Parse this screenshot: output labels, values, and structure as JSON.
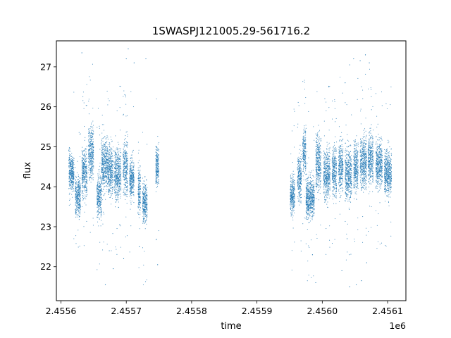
{
  "chart_data": {
    "type": "scatter",
    "title": "1SWASPJ121005.29-561716.2",
    "xlabel": "time",
    "ylabel": "flux",
    "x_offset_label": "1e6",
    "xlim": [
      2455593.0,
      2456128.0
    ],
    "ylim": [
      21.15,
      27.65
    ],
    "x_ticks": [
      2455600,
      2455700,
      2455800,
      2455900,
      2456000,
      2456100
    ],
    "x_tick_labels": [
      "2.4556",
      "2.4557",
      "2.4558",
      "2.4559",
      "2.4560",
      "2.4561"
    ],
    "y_ticks": [
      22,
      23,
      24,
      25,
      26,
      27
    ],
    "y_tick_labels": [
      "22",
      "23",
      "24",
      "25",
      "26",
      "27"
    ],
    "grid": false,
    "point_color": "#1f77b4",
    "segments": [
      {
        "t_start": 2455612,
        "t_end": 2455614,
        "center": 24.45,
        "spread": 0.35
      },
      {
        "t_start": 2455614,
        "t_end": 2455620,
        "center": 24.35,
        "spread": 0.3
      },
      {
        "t_start": 2455622,
        "t_end": 2455630,
        "center": 23.75,
        "spread": 0.35
      },
      {
        "t_start": 2455632,
        "t_end": 2455640,
        "center": 24.35,
        "spread": 0.45
      },
      {
        "t_start": 2455642,
        "t_end": 2455650,
        "center": 24.85,
        "spread": 0.45
      },
      {
        "t_start": 2455655,
        "t_end": 2455662,
        "center": 23.75,
        "spread": 0.4
      },
      {
        "t_start": 2455662,
        "t_end": 2455672,
        "center": 24.55,
        "spread": 0.45
      },
      {
        "t_start": 2455672,
        "t_end": 2455680,
        "center": 24.4,
        "spread": 0.45
      },
      {
        "t_start": 2455682,
        "t_end": 2455692,
        "center": 24.3,
        "spread": 0.45
      },
      {
        "t_start": 2455695,
        "t_end": 2455702,
        "center": 24.5,
        "spread": 0.5
      },
      {
        "t_start": 2455705,
        "t_end": 2455712,
        "center": 24.2,
        "spread": 0.35
      },
      {
        "t_start": 2455718,
        "t_end": 2455722,
        "center": 23.9,
        "spread": 0.4
      },
      {
        "t_start": 2455725,
        "t_end": 2455732,
        "center": 23.6,
        "spread": 0.35
      },
      {
        "t_start": 2455745,
        "t_end": 2455750,
        "center": 24.5,
        "spread": 0.35
      },
      {
        "t_start": 2455951,
        "t_end": 2455958,
        "center": 23.8,
        "spread": 0.35
      },
      {
        "t_start": 2455962,
        "t_end": 2455968,
        "center": 24.2,
        "spread": 0.4
      },
      {
        "t_start": 2455970,
        "t_end": 2455975,
        "center": 24.9,
        "spread": 0.4
      },
      {
        "t_start": 2455975,
        "t_end": 2455988,
        "center": 23.7,
        "spread": 0.35
      },
      {
        "t_start": 2455990,
        "t_end": 2455998,
        "center": 24.6,
        "spread": 0.5
      },
      {
        "t_start": 2456002,
        "t_end": 2456012,
        "center": 24.3,
        "spread": 0.45
      },
      {
        "t_start": 2456015,
        "t_end": 2456022,
        "center": 24.4,
        "spread": 0.45
      },
      {
        "t_start": 2456025,
        "t_end": 2456032,
        "center": 24.5,
        "spread": 0.45
      },
      {
        "t_start": 2456035,
        "t_end": 2456045,
        "center": 24.3,
        "spread": 0.45
      },
      {
        "t_start": 2456048,
        "t_end": 2456055,
        "center": 24.5,
        "spread": 0.45
      },
      {
        "t_start": 2456058,
        "t_end": 2456068,
        "center": 24.6,
        "spread": 0.45
      },
      {
        "t_start": 2456070,
        "t_end": 2456078,
        "center": 24.7,
        "spread": 0.45
      },
      {
        "t_start": 2456082,
        "t_end": 2456092,
        "center": 24.55,
        "spread": 0.4
      },
      {
        "t_start": 2456095,
        "t_end": 2456106,
        "center": 24.35,
        "spread": 0.4
      }
    ],
    "outliers": [
      {
        "x": 2455632,
        "y": 27.35
      },
      {
        "x": 2455668,
        "y": 21.55
      },
      {
        "x": 2455674,
        "y": 22.4
      },
      {
        "x": 2455680,
        "y": 21.95
      },
      {
        "x": 2455696,
        "y": 22.2
      },
      {
        "x": 2455700,
        "y": 27.2
      },
      {
        "x": 2455703,
        "y": 27.45
      },
      {
        "x": 2455712,
        "y": 27.1
      },
      {
        "x": 2455720,
        "y": 22.5
      },
      {
        "x": 2455730,
        "y": 27.2
      },
      {
        "x": 2455748,
        "y": 22.05
      },
      {
        "x": 2455690,
        "y": 23.05
      },
      {
        "x": 2455985,
        "y": 22.3
      },
      {
        "x": 2455990,
        "y": 21.6
      },
      {
        "x": 2456030,
        "y": 21.9
      },
      {
        "x": 2456038,
        "y": 22.7
      },
      {
        "x": 2456042,
        "y": 21.5
      },
      {
        "x": 2456052,
        "y": 21.55
      },
      {
        "x": 2456060,
        "y": 21.65
      },
      {
        "x": 2456068,
        "y": 22.1
      },
      {
        "x": 2456042,
        "y": 27.05
      },
      {
        "x": 2456048,
        "y": 27.2
      },
      {
        "x": 2456058,
        "y": 27.15
      },
      {
        "x": 2456066,
        "y": 27.3
      },
      {
        "x": 2456072,
        "y": 27.1
      },
      {
        "x": 2456035,
        "y": 26.6
      },
      {
        "x": 2456010,
        "y": 26.5
      }
    ]
  }
}
